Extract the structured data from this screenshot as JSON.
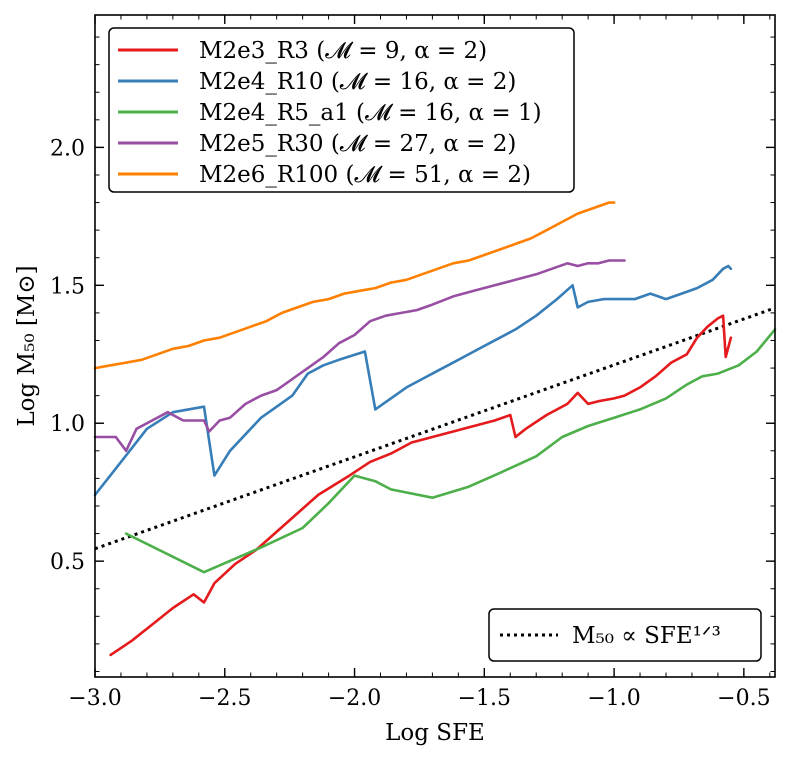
{
  "chart_data": {
    "type": "line",
    "xlabel": "Log SFE",
    "ylabel": "Log M₅₀ [M⊙]",
    "xlim": [
      -3.0,
      -0.38
    ],
    "ylim": [
      0.08,
      2.48
    ],
    "xticks": [
      -3.0,
      -2.5,
      -2.0,
      -1.5,
      -1.0,
      -0.5
    ],
    "xtick_labels": [
      "−3.0",
      "−2.5",
      "−2.0",
      "−1.5",
      "−1.0",
      "−0.5"
    ],
    "yticks": [
      0.5,
      1.0,
      1.5,
      2.0
    ],
    "ytick_labels": [
      "0.5",
      "1.0",
      "1.5",
      "2.0"
    ],
    "legend_position": "top-left",
    "series": [
      {
        "name": "M2e3_R3 (𝓜 = 9, α = 2)",
        "color": "#e41a1c",
        "x": [
          -2.94,
          -2.86,
          -2.78,
          -2.7,
          -2.62,
          -2.58,
          -2.54,
          -2.46,
          -2.38,
          -2.26,
          -2.14,
          -2.02,
          -1.94,
          -1.86,
          -1.78,
          -1.7,
          -1.62,
          -1.54,
          -1.46,
          -1.4,
          -1.38,
          -1.34,
          -1.26,
          -1.18,
          -1.14,
          -1.1,
          -1.06,
          -1.0,
          -0.96,
          -0.9,
          -0.84,
          -0.78,
          -0.72,
          -0.68,
          -0.64,
          -0.6,
          -0.58,
          -0.57,
          -0.55
        ],
        "y": [
          0.16,
          0.21,
          0.27,
          0.33,
          0.38,
          0.35,
          0.42,
          0.49,
          0.54,
          0.64,
          0.74,
          0.81,
          0.86,
          0.89,
          0.93,
          0.95,
          0.97,
          0.99,
          1.01,
          1.03,
          0.95,
          0.98,
          1.03,
          1.07,
          1.11,
          1.07,
          1.08,
          1.09,
          1.1,
          1.13,
          1.17,
          1.22,
          1.25,
          1.31,
          1.35,
          1.38,
          1.39,
          1.24,
          1.31
        ]
      },
      {
        "name": "M2e4_R10 (𝓜 = 16, α = 2)",
        "color": "#377eb8",
        "x": [
          -3.0,
          -2.9,
          -2.8,
          -2.7,
          -2.58,
          -2.54,
          -2.48,
          -2.42,
          -2.36,
          -2.3,
          -2.24,
          -2.18,
          -2.12,
          -2.06,
          -1.96,
          -1.92,
          -1.86,
          -1.8,
          -1.74,
          -1.68,
          -1.6,
          -1.54,
          -1.48,
          -1.44,
          -1.38,
          -1.3,
          -1.22,
          -1.16,
          -1.14,
          -1.1,
          -1.04,
          -0.98,
          -0.92,
          -0.86,
          -0.8,
          -0.74,
          -0.68,
          -0.62,
          -0.58,
          -0.56,
          -0.55
        ],
        "y": [
          0.74,
          0.86,
          0.98,
          1.04,
          1.06,
          0.81,
          0.9,
          0.96,
          1.02,
          1.06,
          1.1,
          1.18,
          1.21,
          1.23,
          1.26,
          1.05,
          1.09,
          1.13,
          1.16,
          1.19,
          1.23,
          1.26,
          1.29,
          1.31,
          1.34,
          1.39,
          1.45,
          1.5,
          1.42,
          1.44,
          1.45,
          1.45,
          1.45,
          1.47,
          1.45,
          1.47,
          1.49,
          1.52,
          1.56,
          1.57,
          1.56
        ]
      },
      {
        "name": "M2e4_R5_a1 (𝓜 = 16, α = 1)",
        "color": "#4daf4a",
        "x": [
          -2.88,
          -2.58,
          -2.36,
          -2.2,
          -2.1,
          -2.0,
          -1.92,
          -1.86,
          -1.7,
          -1.56,
          -1.44,
          -1.3,
          -1.2,
          -1.1,
          -1.0,
          -0.9,
          -0.8,
          -0.72,
          -0.66,
          -0.6,
          -0.52,
          -0.45,
          -0.38
        ],
        "y": [
          0.6,
          0.46,
          0.55,
          0.62,
          0.71,
          0.81,
          0.79,
          0.76,
          0.73,
          0.77,
          0.82,
          0.88,
          0.95,
          0.99,
          1.02,
          1.05,
          1.09,
          1.14,
          1.17,
          1.18,
          1.21,
          1.26,
          1.34
        ]
      },
      {
        "name": "M2e5_R30 (𝓜 = 27, α = 2)",
        "color": "#984ea3",
        "x": [
          -3.0,
          -2.92,
          -2.88,
          -2.84,
          -2.78,
          -2.72,
          -2.66,
          -2.58,
          -2.56,
          -2.52,
          -2.48,
          -2.42,
          -2.36,
          -2.3,
          -2.24,
          -2.18,
          -2.12,
          -2.06,
          -2.0,
          -1.94,
          -1.88,
          -1.82,
          -1.76,
          -1.7,
          -1.62,
          -1.54,
          -1.46,
          -1.38,
          -1.3,
          -1.24,
          -1.18,
          -1.14,
          -1.1,
          -1.06,
          -1.02,
          -0.98,
          -0.96
        ],
        "y": [
          0.95,
          0.95,
          0.9,
          0.98,
          1.01,
          1.04,
          1.01,
          1.01,
          0.97,
          1.01,
          1.02,
          1.07,
          1.1,
          1.12,
          1.16,
          1.2,
          1.24,
          1.29,
          1.32,
          1.37,
          1.39,
          1.4,
          1.41,
          1.43,
          1.46,
          1.48,
          1.5,
          1.52,
          1.54,
          1.56,
          1.58,
          1.57,
          1.58,
          1.58,
          1.59,
          1.59,
          1.59
        ]
      },
      {
        "name": "M2e6_R100 (𝓜 = 51, α = 2)",
        "color": "#ff7f00",
        "x": [
          -3.0,
          -2.94,
          -2.88,
          -2.82,
          -2.76,
          -2.7,
          -2.64,
          -2.58,
          -2.52,
          -2.46,
          -2.4,
          -2.34,
          -2.28,
          -2.22,
          -2.16,
          -2.1,
          -2.04,
          -1.98,
          -1.92,
          -1.86,
          -1.8,
          -1.74,
          -1.68,
          -1.62,
          -1.56,
          -1.5,
          -1.44,
          -1.38,
          -1.32,
          -1.26,
          -1.2,
          -1.14,
          -1.08,
          -1.02,
          -1.0
        ],
        "y": [
          1.2,
          1.21,
          1.22,
          1.23,
          1.25,
          1.27,
          1.28,
          1.3,
          1.31,
          1.33,
          1.35,
          1.37,
          1.4,
          1.42,
          1.44,
          1.45,
          1.47,
          1.48,
          1.49,
          1.51,
          1.52,
          1.54,
          1.56,
          1.58,
          1.59,
          1.61,
          1.63,
          1.65,
          1.67,
          1.7,
          1.73,
          1.76,
          1.78,
          1.8,
          1.8
        ]
      }
    ],
    "reference_line": {
      "name": "M₅₀ ∝ SFE¹ᐟ³",
      "style": "dotted",
      "color": "#000000",
      "x": [
        -3.0,
        -0.38
      ],
      "y": [
        0.545,
        1.418
      ]
    }
  }
}
